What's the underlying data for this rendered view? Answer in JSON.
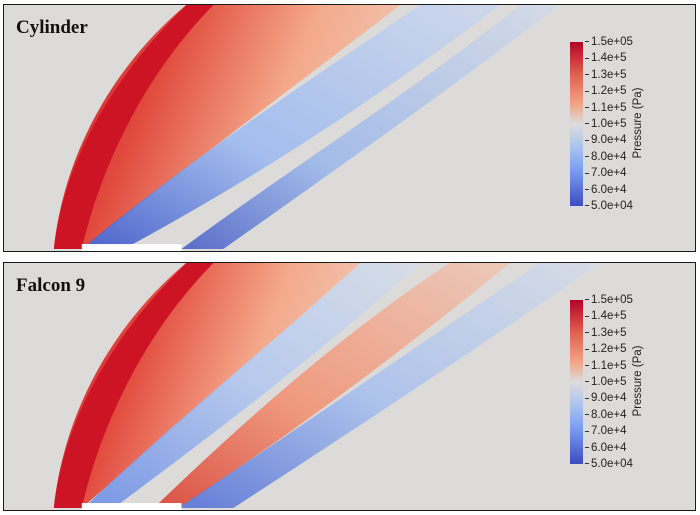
{
  "panels": [
    {
      "title": "Cylinder",
      "colorbar": {
        "title": "Pressure (Pa)",
        "ticks": [
          "1.5e+05",
          "1.4e+5",
          "1.3e+5",
          "1.2e+5",
          "1.1e+5",
          "1.0e+5",
          "9.0e+4",
          "8.0e+4",
          "7.0e+4",
          "6.0e+4",
          "5.0e+04"
        ]
      }
    },
    {
      "title": "Falcon 9",
      "colorbar": {
        "title": "Pressure (Pa)",
        "ticks": [
          "1.5e+05",
          "1.4e+5",
          "1.3e+5",
          "1.2e+5",
          "1.1e+5",
          "1.0e+5",
          "9.0e+4",
          "8.0e+4",
          "7.0e+4",
          "6.0e+4",
          "5.0e+04"
        ]
      }
    }
  ],
  "colors": {
    "high": "#b40426",
    "mid": "#dddcdc",
    "low": "#3b4cc0"
  }
}
